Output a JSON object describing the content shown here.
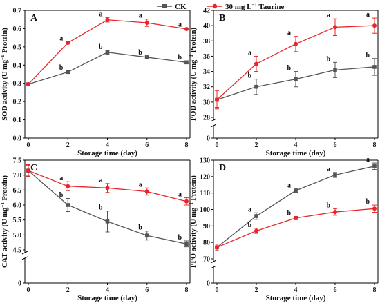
{
  "colors": {
    "ck": "#555555",
    "taurine": "#e8262a",
    "axis": "#000000"
  },
  "legend": {
    "items": [
      {
        "label": "CK",
        "color": "#555555",
        "marker": "square"
      },
      {
        "label": "30 mg L",
        "sup": "−1",
        "after": " Taurine",
        "color": "#e8262a",
        "marker": "circle"
      }
    ]
  },
  "chart_data": [
    {
      "type": "line",
      "panel_label": "A",
      "ylabel": "SOD activity (U mg",
      "ylabel_sup": "−1",
      "ylabel_after": " Protein)",
      "xlabel": "Storage time (day)",
      "x": [
        0,
        2,
        4,
        6,
        8
      ],
      "xlim": [
        0,
        8
      ],
      "ylim": [
        0,
        0.7
      ],
      "yticks": [
        0,
        0.1,
        0.2,
        0.3,
        0.4,
        0.5,
        0.6,
        0.7
      ],
      "ytick_labels": [
        "0.0",
        "0.1",
        "0.2",
        "0.3",
        "0.4",
        "0.5",
        "0.6",
        "0.7"
      ],
      "axis_break": false,
      "series": [
        {
          "name": "CK",
          "color": "#555555",
          "marker": "square",
          "values": [
            0.295,
            0.362,
            0.47,
            0.443,
            0.415
          ],
          "errors": [
            0.004,
            0.005,
            0.01,
            0.008,
            0.008
          ],
          "letters": [
            "",
            "b",
            "b",
            "b",
            "b"
          ]
        },
        {
          "name": "30 mg L−1 Taurine",
          "color": "#e8262a",
          "marker": "circle",
          "values": [
            0.295,
            0.522,
            0.648,
            0.632,
            0.598
          ],
          "errors": [
            0.004,
            0.005,
            0.012,
            0.02,
            0.005
          ],
          "letters": [
            "",
            "a",
            "a",
            "a",
            "a"
          ]
        }
      ]
    },
    {
      "type": "line",
      "panel_label": "B",
      "ylabel": "POD activity (U mg",
      "ylabel_sup": "−1",
      "ylabel_after": " Protein)",
      "xlabel": "Storage time (day)",
      "x": [
        0,
        2,
        4,
        6,
        8
      ],
      "xlim": [
        0,
        8
      ],
      "ylim": [
        28,
        42
      ],
      "yticks": [
        28,
        30,
        32,
        34,
        36,
        38,
        40,
        42
      ],
      "ytick_labels": [
        "28",
        "30",
        "32",
        "34",
        "36",
        "38",
        "40",
        "42"
      ],
      "axis_break": true,
      "bottom_tick_label": "0",
      "series": [
        {
          "name": "CK",
          "color": "#555555",
          "marker": "square",
          "values": [
            30.3,
            32.0,
            33.0,
            34.2,
            34.6
          ],
          "errors": [
            1.0,
            1.0,
            1.0,
            1.0,
            1.1
          ],
          "letters": [
            "",
            "b",
            "b",
            "b",
            "b"
          ]
        },
        {
          "name": "30 mg L−1 Taurine",
          "color": "#e8262a",
          "marker": "circle",
          "values": [
            30.3,
            35.0,
            37.6,
            39.8,
            40.0
          ],
          "errors": [
            1.2,
            1.0,
            1.0,
            1.1,
            1.0
          ],
          "letters": [
            "",
            "a",
            "a",
            "a",
            "a"
          ]
        }
      ]
    },
    {
      "type": "line",
      "panel_label": "C",
      "ylabel": "CAT activity (U mg",
      "ylabel_sup": "−1",
      "ylabel_after": " Protein)",
      "xlabel": "Storage time (day)",
      "x": [
        0,
        2,
        4,
        6,
        8
      ],
      "xlim": [
        0,
        8
      ],
      "ylim": [
        4.5,
        7.5
      ],
      "yticks": [
        4.5,
        5.0,
        5.5,
        6.0,
        6.5,
        7.0,
        7.5
      ],
      "ytick_labels": [
        "4.5",
        "5.0",
        "5.5",
        "6.0",
        "6.5",
        "7.0",
        "7.5"
      ],
      "axis_break": true,
      "bottom_tick_label": "0",
      "series": [
        {
          "name": "CK",
          "color": "#555555",
          "marker": "square",
          "values": [
            7.15,
            6.0,
            5.45,
            4.98,
            4.7
          ],
          "errors": [
            0.18,
            0.22,
            0.35,
            0.15,
            0.1
          ],
          "letters": [
            "",
            "b",
            "b",
            "b",
            "b"
          ]
        },
        {
          "name": "30 mg L−1 Taurine",
          "color": "#e8262a",
          "marker": "circle",
          "values": [
            7.15,
            6.63,
            6.57,
            6.45,
            6.12
          ],
          "errors": [
            0.2,
            0.15,
            0.15,
            0.12,
            0.12
          ],
          "letters": [
            "",
            "a",
            "a",
            "a",
            "a"
          ]
        }
      ]
    },
    {
      "type": "line",
      "panel_label": "D",
      "ylabel": "PPO activity (U mg",
      "ylabel_sup": "−1",
      "ylabel_after": " Protein)",
      "xlabel": "Storage time (day)",
      "x": [
        0,
        2,
        4,
        6,
        8
      ],
      "xlim": [
        0,
        8
      ],
      "ylim": [
        70,
        130
      ],
      "yticks": [
        70,
        80,
        90,
        100,
        110,
        120,
        130
      ],
      "ytick_labels": [
        "70",
        "80",
        "90",
        "100",
        "110",
        "120",
        "130"
      ],
      "axis_break": true,
      "bottom_tick_label": "0",
      "series": [
        {
          "name": "CK",
          "color": "#555555",
          "marker": "square",
          "values": [
            77.0,
            96.0,
            111.5,
            121.0,
            126.3
          ],
          "errors": [
            2.0,
            2.0,
            1.0,
            1.5,
            2.0
          ],
          "letters": [
            "",
            "a",
            "a",
            "a",
            "a"
          ]
        },
        {
          "name": "30 mg L−1 Taurine",
          "color": "#e8262a",
          "marker": "circle",
          "values": [
            77.0,
            87.0,
            94.8,
            98.5,
            100.5
          ],
          "errors": [
            2.0,
            1.5,
            1.0,
            2.0,
            2.2
          ],
          "letters": [
            "",
            "b",
            "b",
            "b",
            "b"
          ]
        }
      ]
    }
  ]
}
